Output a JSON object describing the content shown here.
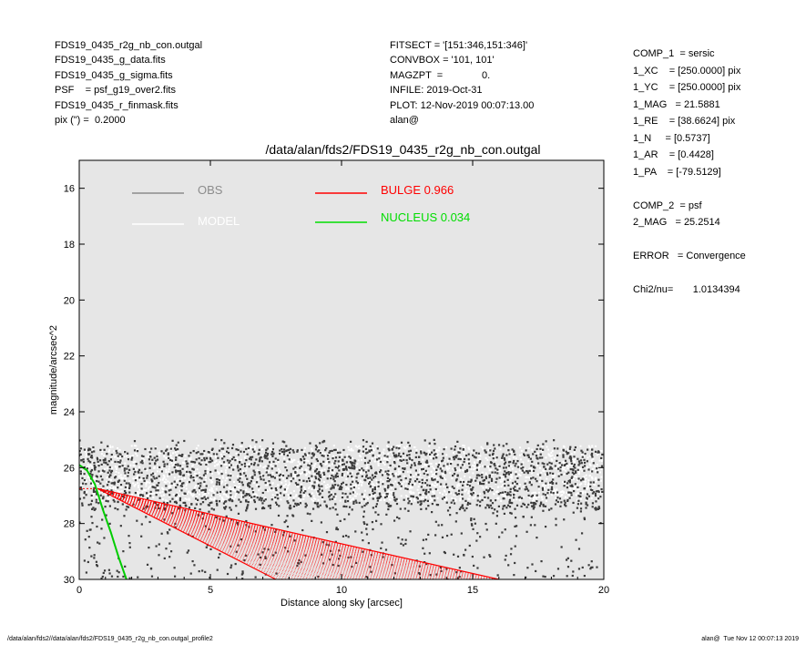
{
  "header_left": [
    "FDS19_0435_r2g_nb_con.outgal",
    "FDS19_0435_g_data.fits",
    "FDS19_0435_g_sigma.fits",
    "PSF    = psf_g19_over2.fits",
    "FDS19_0435_r_finmask.fits",
    "pix (\") =  0.2000"
  ],
  "header_mid": [
    "FITSECT = '[151:346,151:346]'",
    "CONVBOX = '101, 101'",
    "MAGZPT  =              0.",
    "INFILE: 2019-Oct-31",
    "PLOT: 12-Nov-2019 00:07:13.00",
    "alan@"
  ],
  "side_panel": [
    "COMP_1  = sersic",
    "1_XC    = [250.0000] pix",
    "1_YC    = [250.0000] pix",
    "1_MAG   = 21.5881",
    "1_RE    = [38.6624] pix",
    "1_N     = [0.5737]",
    "1_AR    = [0.4428]",
    "1_PA    = [-79.5129]",
    "",
    "COMP_2  = psf",
    "2_MAG   = 25.2514",
    "",
    "ERROR   = Convergence",
    "",
    "Chi2/nu=       1.0134394"
  ],
  "footer_left": "/data/alan/fds2//data/alan/fds2/FDS19_0435_r2g_nb_con.outgal_profile2",
  "footer_right": "alan@  Tue Nov 12 00:07:13 2019",
  "chart_data": {
    "type": "scatter",
    "title": "/data/alan/fds2/FDS19_0435_r2g_nb_con.outgal",
    "xlabel": "Distance along sky [arcsec]",
    "ylabel": "magnitude/arcsec^2",
    "xlim": [
      0,
      20
    ],
    "ylim": [
      30,
      15
    ],
    "y_inverted": true,
    "xticks": [
      0,
      5,
      10,
      15,
      20
    ],
    "yticks": [
      16,
      18,
      20,
      22,
      24,
      26,
      28,
      30
    ],
    "background": "#e6e6e6",
    "legend": [
      {
        "label": "OBS",
        "color": "#8c8c8c"
      },
      {
        "label": "MODEL",
        "color": "#ffffff"
      },
      {
        "label": "BULGE  0.966",
        "color": "#ff0000"
      },
      {
        "label": "NUCLEUS  0.034",
        "color": "#00dd00"
      }
    ],
    "series": [
      {
        "name": "OBS",
        "kind": "scatter",
        "color": "#3c3c3c",
        "x_range": [
          0,
          20
        ],
        "y_range": [
          25.0,
          30.0
        ],
        "approx_points": 2200
      },
      {
        "name": "MODEL",
        "kind": "scatter",
        "color": "#ffffff",
        "x_range": [
          0,
          20
        ],
        "y_range": [
          25.2,
          27.2
        ],
        "approx_points": 2000
      },
      {
        "name": "BULGE  0.966",
        "kind": "wedge",
        "color": "#ff0000",
        "apex": [
          0.0,
          26.75
        ],
        "upper_edge": [
          [
            0.7,
            26.75
          ],
          [
            16.0,
            30.0
          ]
        ],
        "lower_edge": [
          [
            0.7,
            26.75
          ],
          [
            7.5,
            30.0
          ]
        ]
      },
      {
        "name": "NUCLEUS  0.034",
        "kind": "line",
        "color": "#00cc00",
        "x": [
          0.0,
          0.3,
          0.6,
          0.9,
          1.2,
          1.5,
          1.8
        ],
        "y": [
          25.9,
          26.1,
          26.6,
          27.5,
          28.3,
          29.2,
          30.0
        ]
      }
    ]
  }
}
